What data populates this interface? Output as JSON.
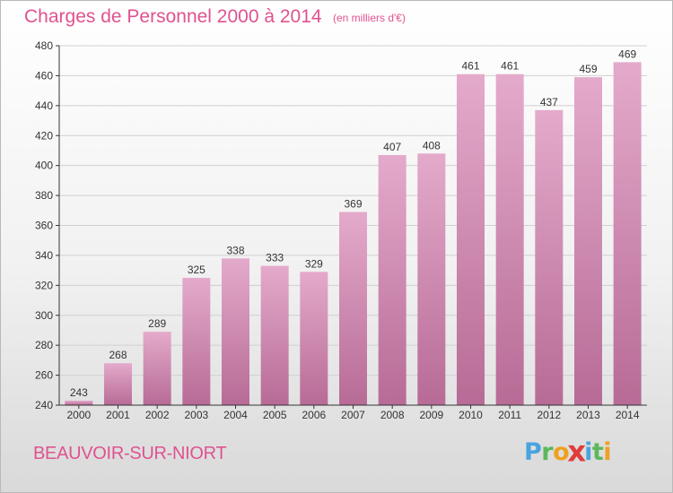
{
  "header": {
    "title": "Charges de Personnel 2000 à 2014",
    "subtitle": "(en milliers d'€)"
  },
  "footer": {
    "place": "BEAUVOIR-SUR-NIORT",
    "logo_letters": [
      "P",
      "r",
      "o",
      "x",
      "i",
      "t",
      "i"
    ],
    "logo_colors": [
      "#4aa3df",
      "#5cb85c",
      "#f0a020",
      "#e03c3c",
      "#4aa3df",
      "#5cb85c",
      "#f0a020"
    ]
  },
  "colors": {
    "bar_top": "#e4aacb",
    "bar_bottom": "#b76b96",
    "grid": "#d0d0d0",
    "axis": "#333333",
    "text": "#333333"
  },
  "chart_data": {
    "type": "bar",
    "categories": [
      "2000",
      "2001",
      "2002",
      "2003",
      "2004",
      "2005",
      "2006",
      "2007",
      "2008",
      "2009",
      "2010",
      "2011",
      "2012",
      "2013",
      "2014"
    ],
    "values": [
      243,
      268,
      289,
      325,
      338,
      333,
      329,
      369,
      407,
      408,
      461,
      461,
      437,
      459,
      469
    ],
    "data_labels": [
      "243",
      "268",
      "289",
      "325",
      "338",
      "333",
      "329",
      "369",
      "407",
      "408",
      "461",
      "461",
      "437",
      "459",
      "469"
    ],
    "ylim": [
      240,
      480
    ],
    "yticks": [
      240,
      260,
      280,
      300,
      320,
      340,
      360,
      380,
      400,
      420,
      440,
      460,
      480
    ],
    "grid": true,
    "xlabel": "",
    "ylabel": ""
  }
}
